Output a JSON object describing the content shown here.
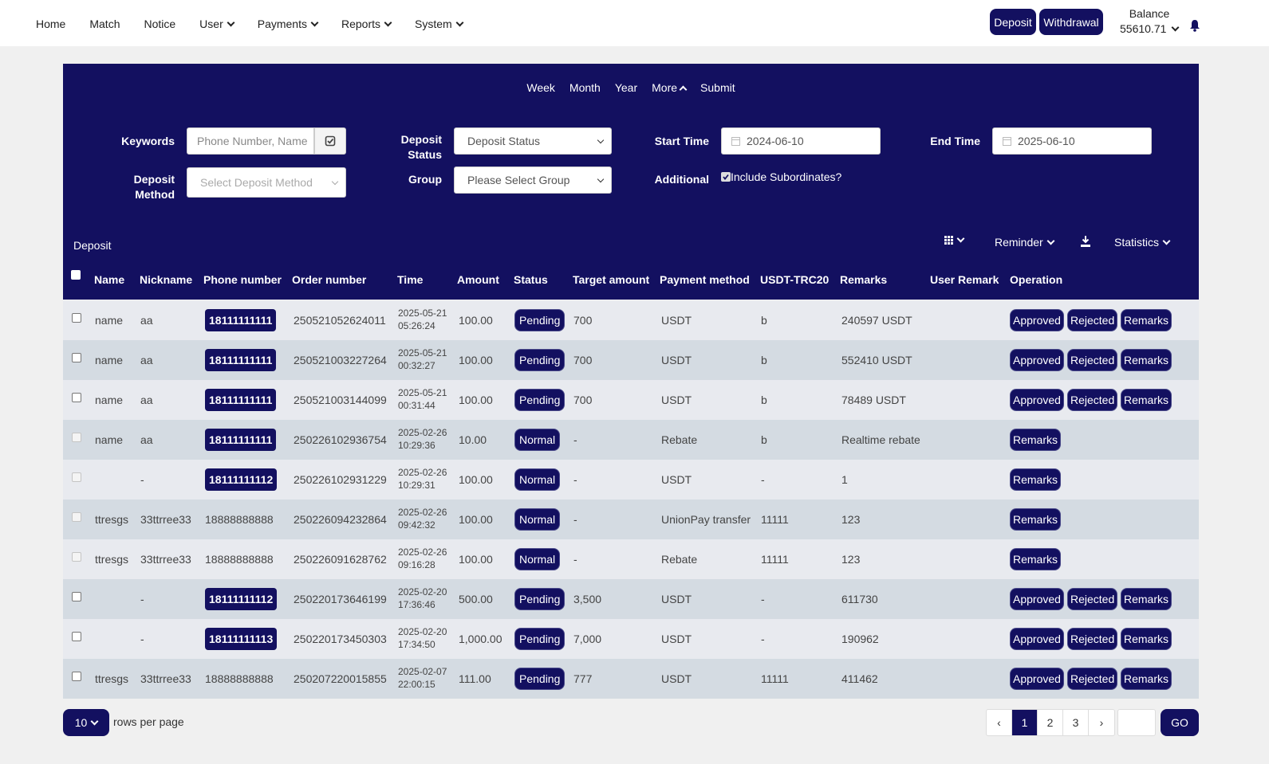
{
  "nav": {
    "items": [
      {
        "label": "Home",
        "dropdown": false
      },
      {
        "label": "Match",
        "dropdown": false
      },
      {
        "label": "Notice",
        "dropdown": false
      },
      {
        "label": "User",
        "dropdown": true
      },
      {
        "label": "Payments",
        "dropdown": true
      },
      {
        "label": "Reports",
        "dropdown": true
      },
      {
        "label": "System",
        "dropdown": true
      }
    ],
    "deposit_label": "Deposit",
    "withdrawal_label": "Withdrawal",
    "balance_label": "Balance",
    "balance_value": "55610.71"
  },
  "filters": {
    "quick": [
      "Week",
      "Month",
      "Year",
      "More",
      "Submit"
    ],
    "keywords_label": "Keywords",
    "keywords_placeholder": "Phone Number, Name",
    "deposit_status_label": "Deposit Status",
    "deposit_status_value": "Deposit Status",
    "start_time_label": "Start Time",
    "start_time_value": "2024-06-10",
    "end_time_label": "End Time",
    "end_time_value": "2025-06-10",
    "deposit_method_label": "Deposit Method",
    "deposit_method_placeholder": "Select Deposit Method",
    "group_label": "Group",
    "group_value": "Please Select Group",
    "additional_label": "Additional",
    "include_subordinates_label": "Include Subordinates?"
  },
  "table": {
    "title": "Deposit",
    "tools": {
      "reminder": "Reminder",
      "statistics": "Statistics"
    },
    "columns": [
      "Name",
      "Nickname",
      "Phone number",
      "Order number",
      "Time",
      "Amount",
      "Status",
      "Target amount",
      "Payment method",
      "USDT-TRC20",
      "Remarks",
      "User Remark",
      "Operation"
    ],
    "rows": [
      {
        "name": "name",
        "nickname": "aa",
        "phone": "18111111111",
        "phone_badge": true,
        "order": "250521052624011",
        "date": "2025-05-21",
        "time": "05:26:24",
        "amount": "100.00",
        "status": "Pending",
        "target": "700",
        "method": "USDT",
        "usdt": "b",
        "remarks": "240597 USDT",
        "user_remark": "",
        "checkbox_enabled": true
      },
      {
        "name": "name",
        "nickname": "aa",
        "phone": "18111111111",
        "phone_badge": true,
        "order": "250521003227264",
        "date": "2025-05-21",
        "time": "00:32:27",
        "amount": "100.00",
        "status": "Pending",
        "target": "700",
        "method": "USDT",
        "usdt": "b",
        "remarks": "552410 USDT",
        "user_remark": "",
        "checkbox_enabled": true
      },
      {
        "name": "name",
        "nickname": "aa",
        "phone": "18111111111",
        "phone_badge": true,
        "order": "250521003144099",
        "date": "2025-05-21",
        "time": "00:31:44",
        "amount": "100.00",
        "status": "Pending",
        "target": "700",
        "method": "USDT",
        "usdt": "b",
        "remarks": "78489 USDT",
        "user_remark": "",
        "checkbox_enabled": true
      },
      {
        "name": "name",
        "nickname": "aa",
        "phone": "18111111111",
        "phone_badge": true,
        "order": "250226102936754",
        "date": "2025-02-26",
        "time": "10:29:36",
        "amount": "10.00",
        "status": "Normal",
        "target": "-",
        "method": "Rebate",
        "usdt": "b",
        "remarks": "Realtime rebate",
        "user_remark": "",
        "checkbox_enabled": false
      },
      {
        "name": "",
        "nickname": "-",
        "phone": "18111111112",
        "phone_badge": true,
        "order": "250226102931229",
        "date": "2025-02-26",
        "time": "10:29:31",
        "amount": "100.00",
        "status": "Normal",
        "target": "-",
        "method": "USDT",
        "usdt": "-",
        "remarks": "1",
        "user_remark": "",
        "checkbox_enabled": false
      },
      {
        "name": "ttresgs",
        "nickname": "33ttrree33",
        "phone": "18888888888",
        "phone_badge": false,
        "order": "250226094232864",
        "date": "2025-02-26",
        "time": "09:42:32",
        "amount": "100.00",
        "status": "Normal",
        "target": "-",
        "method": "UnionPay transfer",
        "usdt": "11111",
        "remarks": "123",
        "user_remark": "",
        "checkbox_enabled": false
      },
      {
        "name": "ttresgs",
        "nickname": "33ttrree33",
        "phone": "18888888888",
        "phone_badge": false,
        "order": "250226091628762",
        "date": "2025-02-26",
        "time": "09:16:28",
        "amount": "100.00",
        "status": "Normal",
        "target": "-",
        "method": "Rebate",
        "usdt": "11111",
        "remarks": "123",
        "user_remark": "",
        "checkbox_enabled": false
      },
      {
        "name": "",
        "nickname": "-",
        "phone": "18111111112",
        "phone_badge": true,
        "order": "250220173646199",
        "date": "2025-02-20",
        "time": "17:36:46",
        "amount": "500.00",
        "status": "Pending",
        "target": "3,500",
        "method": "USDT",
        "usdt": "-",
        "remarks": "611730",
        "user_remark": "",
        "checkbox_enabled": true
      },
      {
        "name": "",
        "nickname": "-",
        "phone": "18111111113",
        "phone_badge": true,
        "order": "250220173450303",
        "date": "2025-02-20",
        "time": "17:34:50",
        "amount": "1,000.00",
        "status": "Pending",
        "target": "7,000",
        "method": "USDT",
        "usdt": "-",
        "remarks": "190962",
        "user_remark": "",
        "checkbox_enabled": true
      },
      {
        "name": "ttresgs",
        "nickname": "33ttrree33",
        "phone": "18888888888",
        "phone_badge": false,
        "order": "250207220015855",
        "date": "2025-02-07",
        "time": "22:00:15",
        "amount": "111.00",
        "status": "Pending",
        "target": "777",
        "method": "USDT",
        "usdt": "11111",
        "remarks": "411462",
        "user_remark": "",
        "checkbox_enabled": true
      }
    ],
    "op_labels": {
      "approved": "Approved",
      "rejected": "Rejected",
      "remarks": "Remarks"
    }
  },
  "pagination": {
    "rows_per_page": "10",
    "rows_label": "rows per page",
    "prev": "‹",
    "next": "›",
    "pages": [
      "1",
      "2",
      "3"
    ],
    "current": "1",
    "go_label": "GO"
  },
  "colors": {
    "primary": "#131060",
    "row_light": "#e8eaef",
    "row_dark": "#d4dbe2"
  }
}
